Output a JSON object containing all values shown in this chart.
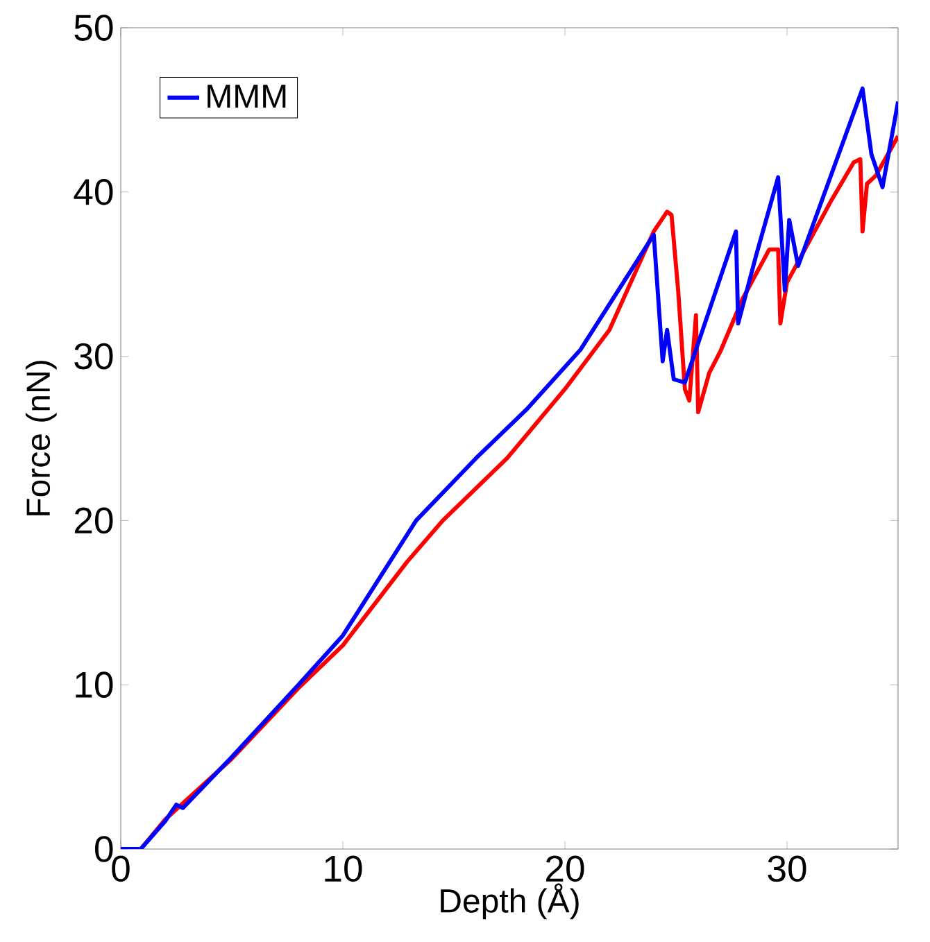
{
  "chart_data": {
    "type": "line",
    "xlabel": "Depth (Å)",
    "ylabel": "Force (nN)",
    "xlim": [
      0,
      35
    ],
    "ylim": [
      0,
      50
    ],
    "xticks": [
      0,
      10,
      20,
      30
    ],
    "yticks": [
      0,
      10,
      20,
      30,
      40,
      50
    ],
    "legend": "top left",
    "grid": false,
    "line_style": "solid",
    "series": [
      {
        "color": "#ff0000",
        "x": [
          0,
          0.9,
          2,
          5,
          8,
          10,
          12.9,
          14.5,
          17.4,
          20,
          22,
          24,
          24.6,
          24.8,
          25.1,
          25.4,
          25.6,
          25.9,
          26.0,
          26.5,
          27,
          28,
          29.2,
          29.6,
          29.7,
          30,
          31,
          32,
          33,
          33.3,
          33.4,
          33.6,
          34,
          35
        ],
        "values": [
          0,
          0,
          1.8,
          5.5,
          9.8,
          12.4,
          17.5,
          20,
          23.8,
          28,
          31.6,
          37.6,
          38.8,
          38.6,
          34,
          28,
          27.3,
          32.5,
          26.6,
          29,
          30.3,
          33.5,
          36.5,
          36.5,
          32,
          34.5,
          37,
          39.5,
          41.8,
          42,
          37.6,
          40.5,
          41,
          43.4
        ]
      },
      {
        "name": "MMM",
        "color": "#0000ff",
        "x": [
          0,
          0.9,
          2,
          2.5,
          2.8,
          5,
          8,
          10,
          13.3,
          16,
          18.3,
          20.7,
          24,
          24.4,
          24.6,
          24.9,
          25.4,
          27.7,
          27.8,
          28.6,
          29.6,
          29.9,
          30.1,
          30.5,
          33.4,
          33.8,
          34.3,
          35
        ],
        "values": [
          0,
          0,
          1.7,
          2.7,
          2.5,
          5.6,
          10,
          13,
          20,
          23.8,
          26.8,
          30.4,
          37.4,
          29.7,
          31.6,
          28.6,
          28.4,
          37.6,
          32,
          36.1,
          40.9,
          34,
          38.3,
          35.5,
          46.3,
          42.3,
          40.3,
          45.5
        ]
      }
    ]
  }
}
